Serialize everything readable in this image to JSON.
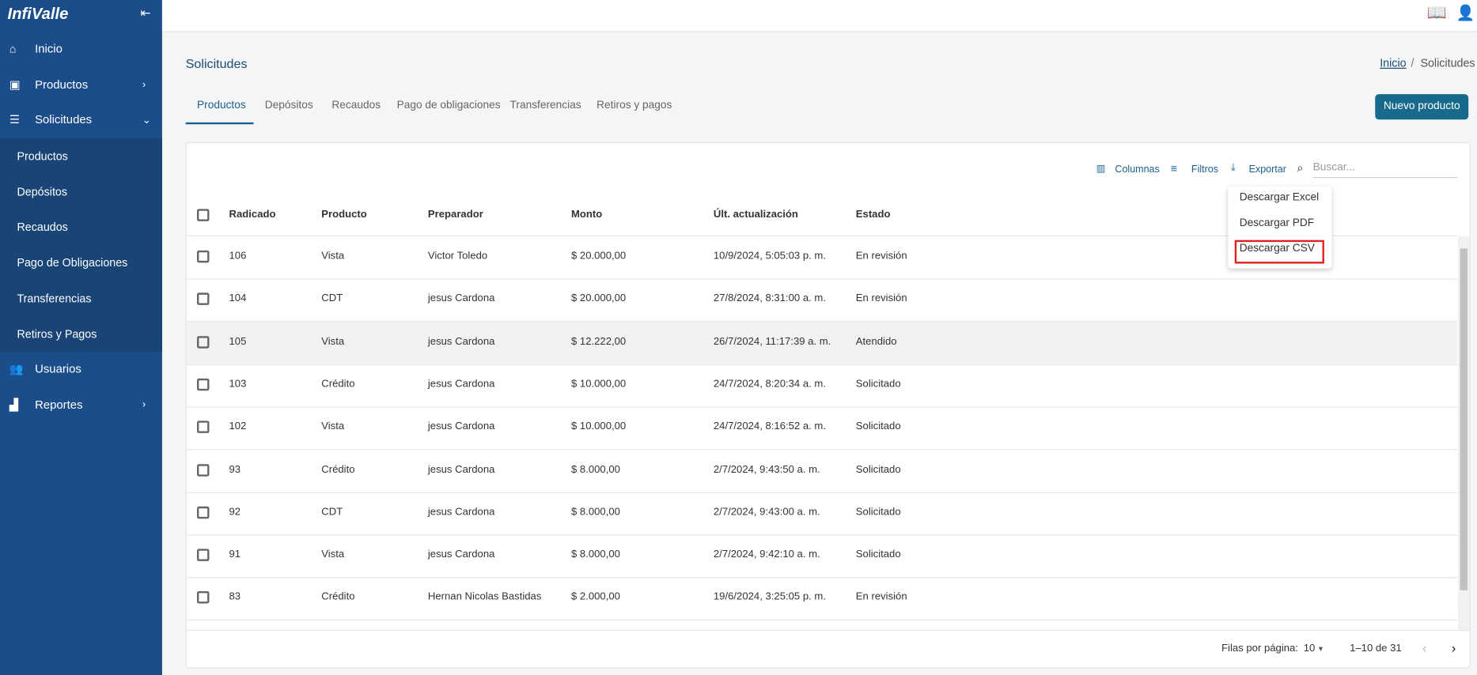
{
  "sidebar": {
    "logo": "InfiValle",
    "menu": [
      {
        "label": "Inicio"
      },
      {
        "label": "Productos"
      },
      {
        "label": "Solicitudes"
      }
    ],
    "submenu": [
      "Productos",
      "Depósitos",
      "Recaudos",
      "Pago de Obligaciones",
      "Transferencias",
      "Retiros y Pagos"
    ],
    "menu_after": [
      {
        "label": "Usuarios"
      },
      {
        "label": "Reportes"
      }
    ]
  },
  "header": {
    "title": "Solicitudes",
    "breadcrumb": [
      "Inicio",
      "Solicitudes"
    ]
  },
  "tabs": [
    "Productos",
    "Depósitos",
    "Recaudos",
    "Pago de obligaciones",
    "Transferencias",
    "Retiros y pagos"
  ],
  "new_button": "Nuevo producto",
  "toolbar": {
    "columns": "Columnas",
    "filters": "Filtros",
    "export": "Exportar",
    "search_placeholder": "Buscar..."
  },
  "export_menu": [
    "Descargar Excel",
    "Descargar PDF",
    "Descargar CSV"
  ],
  "table": {
    "columns": [
      "Radicado",
      "Producto",
      "Preparador",
      "Monto",
      "Últ. actualización",
      "Estado"
    ],
    "rows": [
      [
        "106",
        "Vista",
        "Victor Toledo",
        "$ 20.000,00",
        "10/9/2024, 5:05:03 p. m.",
        "En revisión"
      ],
      [
        "104",
        "CDT",
        "jesus Cardona",
        "$ 20.000,00",
        "27/8/2024, 8:31:00 a. m.",
        "En revisión"
      ],
      [
        "105",
        "Vista",
        "jesus Cardona",
        "$ 12.222,00",
        "26/7/2024, 11:17:39 a. m.",
        "Atendido"
      ],
      [
        "103",
        "Crédito",
        "jesus Cardona",
        "$ 10.000,00",
        "24/7/2024, 8:20:34 a. m.",
        "Solicitado"
      ],
      [
        "102",
        "Vista",
        "jesus Cardona",
        "$ 10.000,00",
        "24/7/2024, 8:16:52 a. m.",
        "Solicitado"
      ],
      [
        "93",
        "Crédito",
        "jesus Cardona",
        "$ 8.000,00",
        "2/7/2024, 9:43:50 a. m.",
        "Solicitado"
      ],
      [
        "92",
        "CDT",
        "jesus Cardona",
        "$ 8.000,00",
        "2/7/2024, 9:43:00 a. m.",
        "Solicitado"
      ],
      [
        "91",
        "Vista",
        "jesus Cardona",
        "$ 8.000,00",
        "2/7/2024, 9:42:10 a. m.",
        "Solicitado"
      ],
      [
        "83",
        "Crédito",
        "Hernan Nicolas Bastidas",
        "$ 2.000,00",
        "19/6/2024, 3:25:05 p. m.",
        "En revisión"
      ]
    ]
  },
  "pagination": {
    "rows_label": "Filas por página:",
    "rows_per_page": "10",
    "range": "1–10 de 31"
  }
}
